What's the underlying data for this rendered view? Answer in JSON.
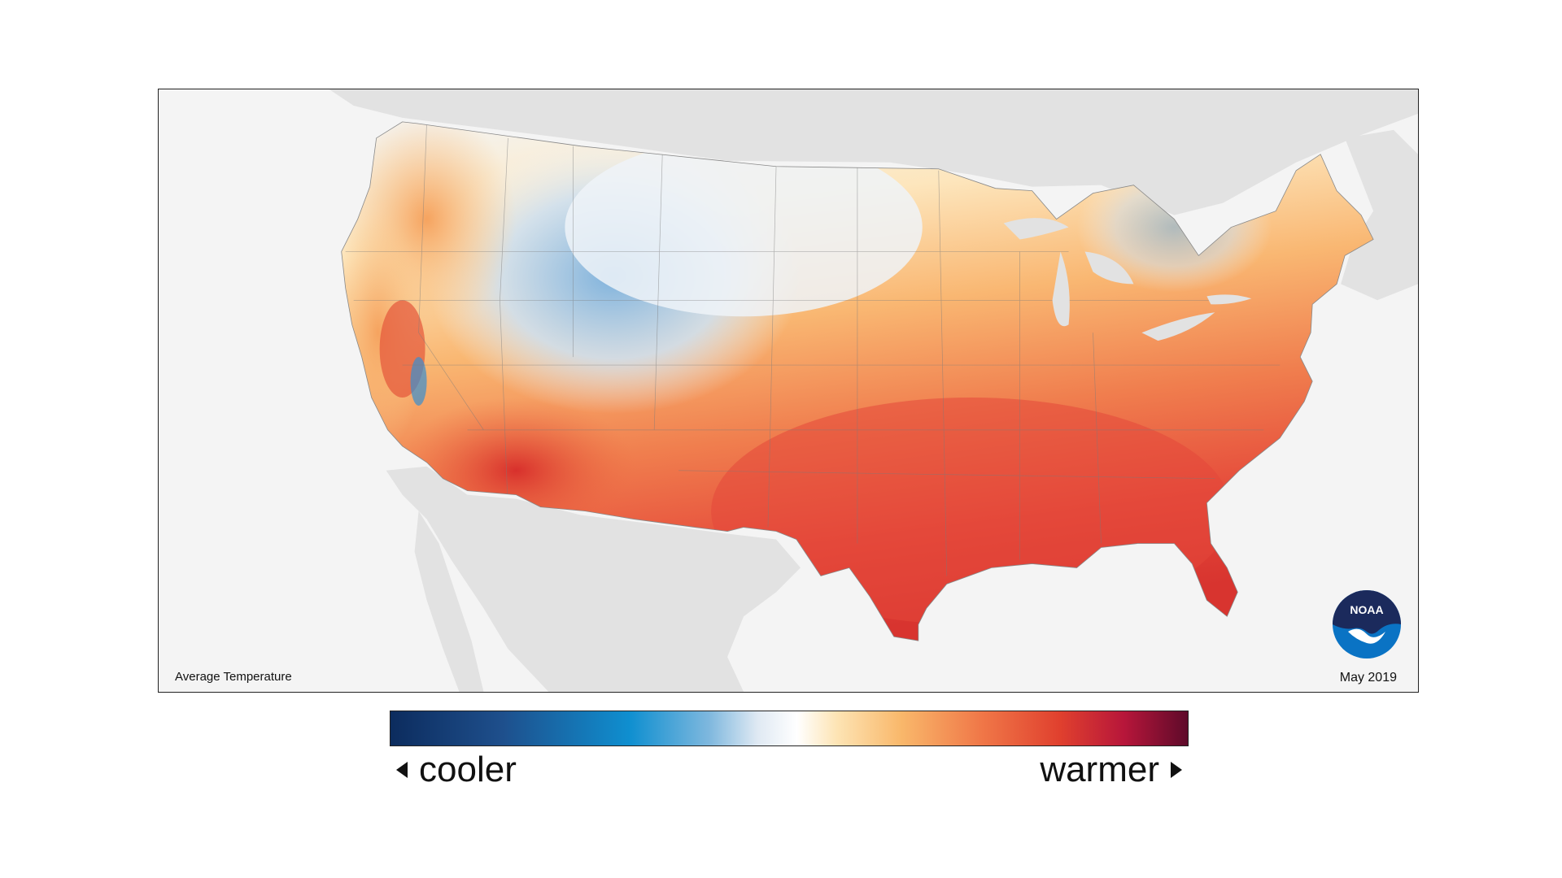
{
  "map": {
    "title": "Average Temperature",
    "date": "May 2019",
    "logo": "noaa-logo",
    "logo_text": "NOAA",
    "background_color": "#f4f4f4",
    "land_outside_color": "#e2e2e2"
  },
  "legend": {
    "cooler_label": "cooler",
    "warmer_label": "warmer",
    "colors": [
      "#0c2c5e",
      "#0f8fd0",
      "#ffffff",
      "#f9b86b",
      "#e0402e",
      "#5e0a2a"
    ]
  }
}
